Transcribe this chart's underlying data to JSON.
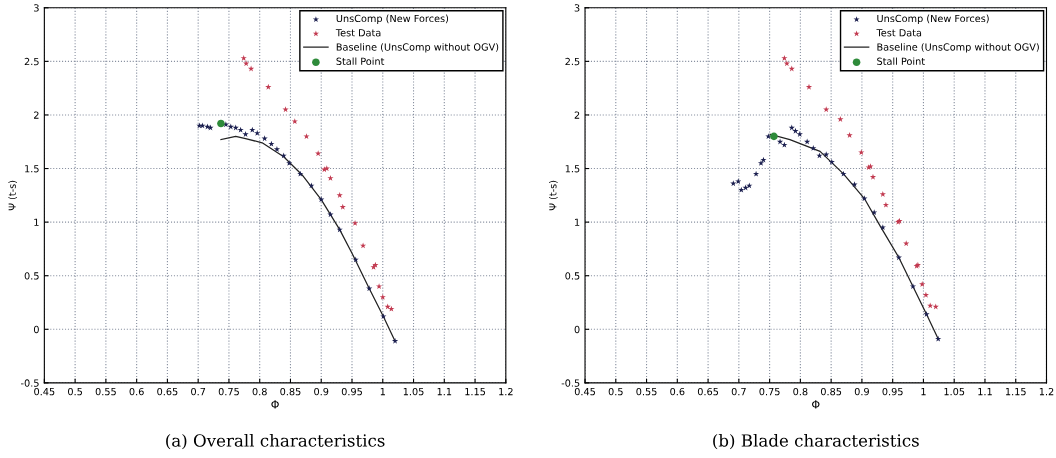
{
  "chart_data": [
    {
      "type": "scatter",
      "xlabel": "Φ",
      "ylabel": "Ψ (t-s)",
      "annotations": [
        "(a) Overall characteristics"
      ],
      "xlim": [
        0.45,
        1.2
      ],
      "ylim": [
        -0.5,
        3
      ],
      "xticks": [
        0.45,
        0.5,
        0.55,
        0.6,
        0.65,
        0.7,
        0.75,
        0.8,
        0.85,
        0.9,
        0.95,
        1,
        1.05,
        1.1,
        1.15,
        1.2
      ],
      "yticks": [
        -0.5,
        0,
        0.5,
        1,
        1.5,
        2,
        2.5,
        3
      ],
      "grid": true,
      "legend": "top right",
      "series": [
        {
          "name": "UnsComp (New Forces)",
          "color": "#1c2050",
          "marker": "star",
          "x": [
            0.702,
            0.707,
            0.715,
            0.72,
            0.745,
            0.753,
            0.761,
            0.769,
            0.777,
            0.788,
            0.796,
            0.808,
            0.819,
            0.828,
            0.839,
            0.848,
            0.866,
            0.884,
            0.9,
            0.915,
            0.93,
            0.956,
            0.978,
            1.001,
            1.02
          ],
          "values": [
            1.9,
            1.9,
            1.89,
            1.88,
            1.91,
            1.89,
            1.88,
            1.86,
            1.82,
            1.86,
            1.83,
            1.78,
            1.73,
            1.68,
            1.62,
            1.55,
            1.45,
            1.34,
            1.21,
            1.07,
            0.93,
            0.65,
            0.38,
            0.12,
            -0.11
          ]
        },
        {
          "name": "Test Data",
          "color": "#c23a50",
          "marker": "star",
          "x": [
            0.774,
            0.778,
            0.786,
            0.814,
            0.842,
            0.857,
            0.876,
            0.895,
            0.905,
            0.909,
            0.915,
            0.93,
            0.935,
            0.955,
            0.968,
            0.985,
            0.988,
            0.994,
            1.0,
            1.008,
            1.014
          ],
          "values": [
            2.53,
            2.48,
            2.43,
            2.26,
            2.05,
            1.94,
            1.8,
            1.64,
            1.49,
            1.5,
            1.41,
            1.25,
            1.14,
            0.99,
            0.78,
            0.58,
            0.6,
            0.4,
            0.3,
            0.21,
            0.19
          ]
        },
        {
          "name": "Baseline (UnsComp without OGV)",
          "type": "line",
          "color": "#222222",
          "marker": "none",
          "x": [
            0.737,
            0.761,
            0.777,
            0.804,
            0.839,
            0.869,
            0.9,
            0.93,
            0.95,
            0.978,
            1.001,
            1.02
          ],
          "values": [
            1.77,
            1.8,
            1.78,
            1.74,
            1.61,
            1.44,
            1.21,
            0.93,
            0.71,
            0.38,
            0.12,
            -0.11
          ]
        },
        {
          "name": "Stall Point",
          "color": "#2e8b3a",
          "marker": "circle",
          "x": [
            0.737
          ],
          "values": [
            1.92
          ]
        }
      ]
    },
    {
      "type": "scatter",
      "xlabel": "Φ",
      "ylabel": "Ψ (t-s)",
      "annotations": [
        "(b) Blade characteristics"
      ],
      "xlim": [
        0.45,
        1.2
      ],
      "ylim": [
        -0.5,
        3
      ],
      "xticks": [
        0.45,
        0.5,
        0.55,
        0.6,
        0.65,
        0.7,
        0.75,
        0.8,
        0.85,
        0.9,
        0.95,
        1,
        1.05,
        1.1,
        1.15,
        1.2
      ],
      "yticks": [
        -0.5,
        0,
        0.5,
        1,
        1.5,
        2,
        2.5,
        3
      ],
      "grid": true,
      "legend": "top right",
      "series": [
        {
          "name": "UnsComp (New Forces)",
          "color": "#1c2050",
          "marker": "star",
          "x": [
            0.691,
            0.699,
            0.704,
            0.711,
            0.717,
            0.728,
            0.736,
            0.74,
            0.748,
            0.767,
            0.774,
            0.786,
            0.792,
            0.799,
            0.811,
            0.821,
            0.831,
            0.842,
            0.851,
            0.87,
            0.888,
            0.904,
            0.92,
            0.934,
            0.96,
            0.983,
            1.005,
            1.024
          ],
          "values": [
            1.36,
            1.38,
            1.3,
            1.32,
            1.34,
            1.45,
            1.55,
            1.58,
            1.8,
            1.75,
            1.72,
            1.88,
            1.85,
            1.82,
            1.75,
            1.69,
            1.62,
            1.63,
            1.56,
            1.45,
            1.35,
            1.22,
            1.09,
            0.95,
            0.67,
            0.4,
            0.14,
            -0.09
          ]
        },
        {
          "name": "Test Data",
          "color": "#c23a50",
          "marker": "star",
          "x": [
            0.774,
            0.778,
            0.786,
            0.814,
            0.842,
            0.865,
            0.88,
            0.899,
            0.911,
            0.914,
            0.918,
            0.934,
            0.939,
            0.959,
            0.961,
            0.972,
            0.989,
            0.991,
            0.998,
            1.004,
            1.011,
            1.02
          ],
          "values": [
            2.53,
            2.48,
            2.43,
            2.26,
            2.05,
            1.96,
            1.81,
            1.65,
            1.51,
            1.52,
            1.42,
            1.26,
            1.16,
            1.0,
            1.01,
            0.8,
            0.59,
            0.6,
            0.42,
            0.32,
            0.22,
            0.21
          ]
        },
        {
          "name": "Baseline (UnsComp without OGV)",
          "type": "line",
          "color": "#222222",
          "marker": "none",
          "x": [
            0.751,
            0.783,
            0.832,
            0.87,
            0.904,
            0.93,
            0.96,
            0.983,
            1.005,
            1.024
          ],
          "values": [
            1.82,
            1.77,
            1.66,
            1.45,
            1.22,
            0.96,
            0.67,
            0.4,
            0.14,
            -0.09
          ]
        },
        {
          "name": "Stall Point",
          "color": "#2e8b3a",
          "marker": "circle",
          "x": [
            0.757
          ],
          "values": [
            1.8
          ]
        }
      ]
    }
  ]
}
